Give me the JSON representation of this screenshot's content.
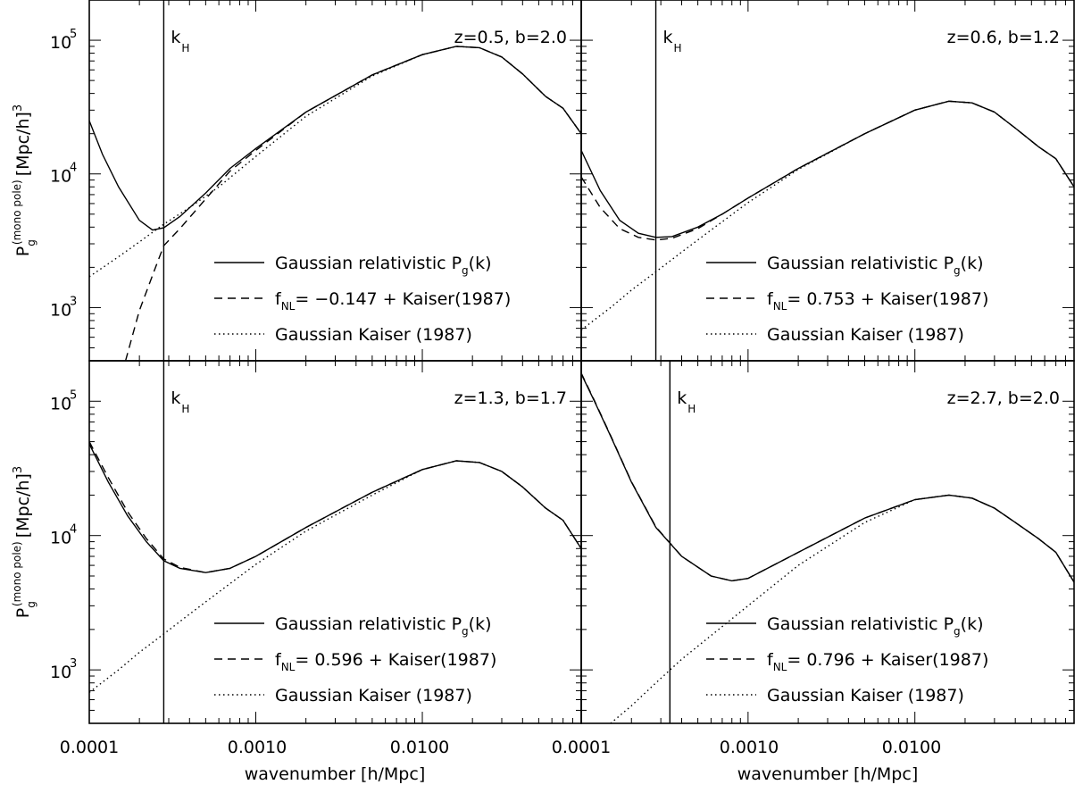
{
  "chart_data": [
    {
      "type": "line",
      "title": "z=0.5, b=2.0",
      "xscale": "log",
      "yscale": "log",
      "xlim": [
        0.0001,
        0.09
      ],
      "ylim": [
        400,
        200000
      ],
      "khorizon_label": "kH",
      "khorizon": 0.00028,
      "series": [
        {
          "name": "Gaussian relativistic Pg(k)",
          "style": "solid",
          "x": [
            0.0001,
            0.00012,
            0.00015,
            0.0002,
            0.00024,
            0.00028,
            0.00035,
            0.0005,
            0.0007,
            0.001,
            0.002,
            0.005,
            0.01,
            0.016,
            0.022,
            0.03,
            0.04,
            0.055,
            0.07,
            0.09
          ],
          "y": [
            25000,
            14000,
            8000,
            4500,
            3800,
            3950,
            4800,
            7200,
            11000,
            15500,
            29000,
            55000,
            78000,
            90000,
            88000,
            75000,
            56000,
            38000,
            31000,
            20000
          ]
        },
        {
          "name": "fNL= −0.147 + Kaiser(1987)",
          "style": "dashed",
          "x": [
            0.000165,
            0.0002,
            0.00025,
            0.00028,
            0.00035,
            0.0005,
            0.0007,
            0.001,
            0.002,
            0.005,
            0.01,
            0.016,
            0.022,
            0.03,
            0.04,
            0.055,
            0.07,
            0.09
          ],
          "y": [
            400,
            950,
            2000,
            2900,
            3900,
            6500,
            10500,
            15000,
            29000,
            55000,
            78000,
            90000,
            88000,
            75000,
            56000,
            38000,
            31000,
            20000
          ]
        },
        {
          "name": "Gaussian Kaiser (1987)",
          "style": "dotted",
          "x": [
            0.0001,
            0.00015,
            0.0002,
            0.00028,
            0.0004,
            0.0006,
            0.001,
            0.002,
            0.005,
            0.01,
            0.016,
            0.022,
            0.03,
            0.04,
            0.055,
            0.07,
            0.09
          ],
          "y": [
            1700,
            2400,
            3100,
            4200,
            5600,
            8000,
            13500,
            27000,
            54000,
            78000,
            90000,
            88000,
            75000,
            56000,
            38000,
            31000,
            20000
          ]
        }
      ]
    },
    {
      "type": "line",
      "title": "z=0.6, b=1.2",
      "xscale": "log",
      "yscale": "log",
      "xlim": [
        0.0001,
        0.09
      ],
      "ylim": [
        400,
        200000
      ],
      "khorizon_label": "kH",
      "khorizon": 0.00028,
      "series": [
        {
          "name": "Gaussian relativistic Pg(k)",
          "style": "solid",
          "x": [
            0.0001,
            0.00013,
            0.00017,
            0.00022,
            0.00028,
            0.00035,
            0.0005,
            0.0007,
            0.001,
            0.002,
            0.005,
            0.01,
            0.016,
            0.022,
            0.03,
            0.04,
            0.055,
            0.07,
            0.09
          ],
          "y": [
            15000,
            7500,
            4500,
            3600,
            3350,
            3400,
            4000,
            5000,
            6600,
            11000,
            20000,
            30000,
            35000,
            34000,
            29000,
            22000,
            16000,
            13000,
            8000
          ]
        },
        {
          "name": "fNL= 0.753 + Kaiser(1987)",
          "style": "dashed",
          "x": [
            0.0001,
            0.00013,
            0.00017,
            0.00022,
            0.00028,
            0.00035,
            0.0005,
            0.0007,
            0.001,
            0.002,
            0.005,
            0.01,
            0.016,
            0.022,
            0.03,
            0.04,
            0.055,
            0.07,
            0.09
          ],
          "y": [
            9500,
            5600,
            3900,
            3350,
            3200,
            3300,
            3900,
            5000,
            6600,
            11000,
            20000,
            30000,
            35000,
            34000,
            29000,
            22000,
            16000,
            13000,
            8000
          ]
        },
        {
          "name": "Gaussian Kaiser (1987)",
          "style": "dotted",
          "x": [
            0.0001,
            0.00015,
            0.0002,
            0.00028,
            0.0004,
            0.0006,
            0.001,
            0.002,
            0.005,
            0.01,
            0.016,
            0.022,
            0.03,
            0.04,
            0.055,
            0.07,
            0.09
          ],
          "y": [
            680,
            1000,
            1350,
            1850,
            2600,
            3800,
            6100,
            10800,
            20000,
            30000,
            35000,
            34000,
            29000,
            22000,
            16000,
            13000,
            8000
          ]
        }
      ]
    },
    {
      "type": "line",
      "title": "z=1.3, b=1.7",
      "xscale": "log",
      "yscale": "log",
      "xlim": [
        0.0001,
        0.09
      ],
      "ylim": [
        400,
        200000
      ],
      "khorizon_label": "kH",
      "khorizon": 0.00028,
      "series": [
        {
          "name": "Gaussian relativistic Pg(k)",
          "style": "solid",
          "x": [
            0.0001,
            0.00013,
            0.00017,
            0.00022,
            0.00028,
            0.00035,
            0.0005,
            0.0007,
            0.001,
            0.002,
            0.005,
            0.01,
            0.016,
            0.022,
            0.03,
            0.04,
            0.055,
            0.07,
            0.09
          ],
          "y": [
            48000,
            25000,
            14000,
            9000,
            6500,
            5700,
            5300,
            5700,
            7000,
            11500,
            21000,
            31000,
            36000,
            35000,
            30000,
            23000,
            16000,
            13000,
            8000
          ]
        },
        {
          "name": "fNL= 0.596 + Kaiser(1987)",
          "style": "dashed",
          "x": [
            0.0001,
            0.00013,
            0.00017,
            0.00022,
            0.00028,
            0.00035,
            0.0005,
            0.0007,
            0.001,
            0.002,
            0.005,
            0.01,
            0.016,
            0.022,
            0.03,
            0.04,
            0.055,
            0.07,
            0.09
          ],
          "y": [
            50000,
            27000,
            15000,
            9500,
            6700,
            5800,
            5300,
            5700,
            7000,
            11500,
            21000,
            31000,
            36000,
            35000,
            30000,
            23000,
            16000,
            13000,
            8000
          ]
        },
        {
          "name": "Gaussian Kaiser (1987)",
          "style": "dotted",
          "x": [
            0.0001,
            0.00015,
            0.0002,
            0.00028,
            0.0004,
            0.0006,
            0.001,
            0.002,
            0.005,
            0.01,
            0.016,
            0.022,
            0.03,
            0.04,
            0.055,
            0.07,
            0.09
          ],
          "y": [
            680,
            1000,
            1350,
            1850,
            2600,
            3800,
            6100,
            10800,
            20000,
            31000,
            36000,
            35000,
            30000,
            23000,
            16000,
            13000,
            8000
          ]
        }
      ]
    },
    {
      "type": "line",
      "title": "z=2.7, b=2.0",
      "xscale": "log",
      "yscale": "log",
      "xlim": [
        0.0001,
        0.09
      ],
      "ylim": [
        400,
        200000
      ],
      "khorizon_label": "kH",
      "khorizon": 0.00034,
      "series": [
        {
          "name": "Gaussian relativistic Pg(k)",
          "style": "solid",
          "x": [
            0.0001,
            0.00012,
            0.00015,
            0.0002,
            0.00028,
            0.0004,
            0.0006,
            0.0008,
            0.001,
            0.002,
            0.005,
            0.01,
            0.016,
            0.022,
            0.03,
            0.04,
            0.055,
            0.07,
            0.09
          ],
          "y": [
            160000,
            100000,
            55000,
            25000,
            11500,
            7000,
            5000,
            4600,
            4800,
            7500,
            13500,
            18500,
            20000,
            19000,
            16000,
            12500,
            9500,
            7500,
            4500
          ]
        },
        {
          "name": "fNL= 0.796 + Kaiser(1987)",
          "style": "dashed",
          "x": [
            0.0001,
            0.00012,
            0.00015,
            0.0002,
            0.00028,
            0.0004,
            0.0006,
            0.0008,
            0.001,
            0.002,
            0.005,
            0.01,
            0.016,
            0.022,
            0.03,
            0.04,
            0.055,
            0.07,
            0.09
          ],
          "y": [
            162000,
            101000,
            55500,
            25200,
            11600,
            7000,
            5000,
            4600,
            4800,
            7500,
            13500,
            18500,
            20000,
            19000,
            16000,
            12500,
            9500,
            7500,
            4500
          ]
        },
        {
          "name": "Gaussian Kaiser (1987)",
          "style": "dotted",
          "x": [
            0.00015,
            0.0002,
            0.00028,
            0.0004,
            0.0006,
            0.001,
            0.002,
            0.005,
            0.01,
            0.016,
            0.022,
            0.03,
            0.04,
            0.055,
            0.07,
            0.09
          ],
          "y": [
            400,
            540,
            800,
            1200,
            1800,
            3000,
            6000,
            12500,
            18500,
            20000,
            19000,
            16000,
            12500,
            9500,
            7500,
            4500
          ]
        }
      ]
    }
  ],
  "axes": {
    "ylabel_main": "P",
    "ylabel_sub": "g",
    "ylabel_sup": "(mono pole)",
    "ylabel_units": "[Mpc/h]",
    "ylabel_pow": "3",
    "xlabel": "wavenumber [h/Mpc]",
    "xticklabels": [
      "0.0001",
      "0.0010",
      "0.0100",
      "0.0001",
      "0.0010",
      "0.0100"
    ],
    "ytick_base": "10",
    "ytick_exps": [
      "5",
      "4",
      "3"
    ]
  },
  "legend": {
    "rel_label": "Gaussian relativistic P",
    "rel_sub": "g",
    "rel_tail": "(k)",
    "fnl_prefix": "f",
    "fnl_sub": "NL",
    "fnl_values": [
      "= −0.147 + Kaiser(1987)",
      "=  0.753 + Kaiser(1987)",
      "=  0.596 + Kaiser(1987)",
      "=  0.796 + Kaiser(1987)"
    ],
    "kaiser_label": "Gaussian Kaiser (1987)"
  }
}
